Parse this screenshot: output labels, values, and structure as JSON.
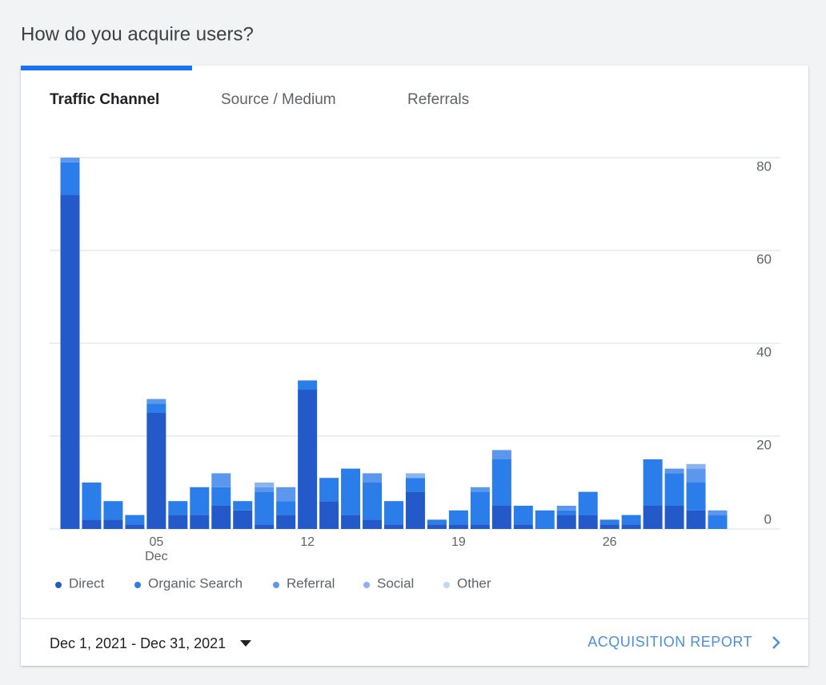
{
  "page_title": "How do you acquire users?",
  "tabs": [
    "Traffic Channel",
    "Source / Medium",
    "Referrals"
  ],
  "chart_data": {
    "type": "bar",
    "stacked": true,
    "categories": [
      null,
      null,
      null,
      null,
      "05",
      null,
      null,
      null,
      null,
      null,
      null,
      "12",
      null,
      null,
      null,
      null,
      null,
      null,
      "19",
      null,
      null,
      null,
      null,
      null,
      null,
      "26",
      null,
      null,
      null,
      null,
      null
    ],
    "month_label": "Dec",
    "series": [
      {
        "name": "Direct",
        "color": "#2359c9",
        "values": [
          72,
          2,
          2,
          1,
          25,
          3,
          3,
          5,
          4,
          1,
          3,
          30,
          6,
          3,
          2,
          1,
          8,
          1,
          1,
          1,
          5,
          1,
          0,
          3,
          3,
          1,
          1,
          5,
          5,
          4,
          0
        ]
      },
      {
        "name": "Organic Search",
        "color": "#2b7de9",
        "values": [
          7,
          8,
          4,
          2,
          2,
          3,
          6,
          4,
          2,
          7,
          3,
          2,
          5,
          10,
          8,
          5,
          3,
          1,
          3,
          7,
          10,
          4,
          4,
          1,
          5,
          1,
          2,
          10,
          7,
          6,
          3
        ]
      },
      {
        "name": "Referral",
        "color": "#5b97ec",
        "values": [
          1,
          0,
          0,
          0,
          1,
          0,
          0,
          3,
          0,
          1,
          3,
          0,
          0,
          0,
          2,
          0,
          0,
          0,
          0,
          1,
          2,
          0,
          0,
          1,
          0,
          0,
          0,
          0,
          1,
          3,
          1
        ]
      },
      {
        "name": "Social",
        "color": "#8ab4f0",
        "values": [
          0,
          0,
          0,
          0,
          0,
          0,
          0,
          0,
          0,
          1,
          0,
          0,
          0,
          0,
          0,
          0,
          1,
          0,
          0,
          0,
          0,
          0,
          0,
          0,
          0,
          0,
          0,
          0,
          0,
          1,
          0
        ]
      },
      {
        "name": "Other",
        "color": "#c2d7f6",
        "values": [
          0,
          0,
          0,
          0,
          0,
          0,
          0,
          0,
          0,
          0,
          0,
          0,
          0,
          0,
          0,
          0,
          0,
          0,
          0,
          0,
          0,
          0,
          0,
          0,
          0,
          0,
          0,
          0,
          0,
          0,
          0
        ]
      }
    ],
    "ylim": [
      0,
      80
    ],
    "yticks": [
      0,
      20,
      40,
      60,
      80
    ],
    "grid": true,
    "y_axis_side": "right",
    "legend_position": "bottom"
  },
  "footer": {
    "date_range": "Dec 1, 2021 - Dec 31, 2021",
    "report_link": "ACQUISITION REPORT"
  }
}
